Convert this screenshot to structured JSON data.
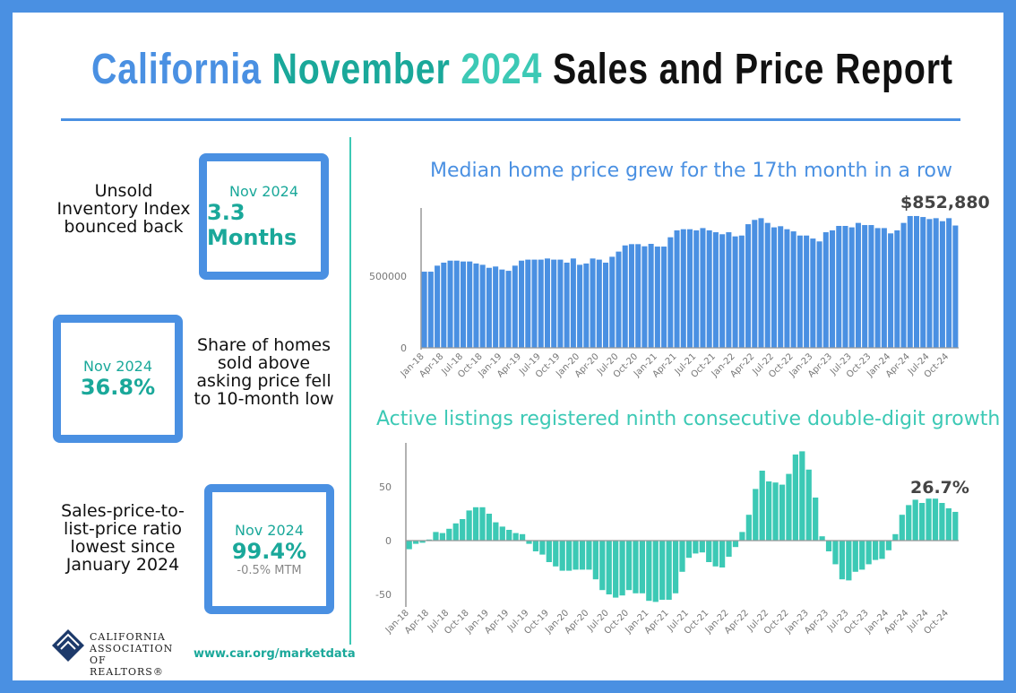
{
  "title": {
    "part1": "California",
    "part2": "November",
    "part3": "2024",
    "part4": "Sales and Price Report"
  },
  "panels": [
    {
      "label": "Unsold Inventory Index bounced back",
      "month": "Nov 2024",
      "value": "3.3 Months"
    },
    {
      "label": "Share of homes sold above asking price fell to 10-month low",
      "month": "Nov 2024",
      "value": "36.8%"
    },
    {
      "label": "Sales-price-to-list-price ratio lowest since January 2024",
      "month": "Nov 2024",
      "value": "99.4%",
      "sub": "-0.5% MTM"
    }
  ],
  "footer": {
    "logo_text": "CALIFORNIA ASSOCIATION OF REALTORS®",
    "url": "www.car.org/marketdata"
  },
  "colors": {
    "frame": "#4a90e2",
    "price_bars": "#4a90e2",
    "listing_bars": "#3cc9b5",
    "accent": "#1aa89a"
  },
  "chart_data": [
    {
      "type": "bar",
      "title": "Median home price grew for the 17th month in a row",
      "annotation": "$852,880",
      "x_start": "Jan-18",
      "x_end": "Nov-24",
      "tick_labels": [
        "Jan-18",
        "Apr-18",
        "Jul-18",
        "Oct-18",
        "Jan-19",
        "Apr-19",
        "Jul-19",
        "Oct-19",
        "Jan-20",
        "Apr-20",
        "Jul-20",
        "Oct-20",
        "Jan-21",
        "Apr-21",
        "Jul-21",
        "Oct-21",
        "Jan-22",
        "Apr-22",
        "Jul-22",
        "Oct-22",
        "Jan-23",
        "Apr-23",
        "Jul-23",
        "Oct-23",
        "Jan-24",
        "Apr-24",
        "Jul-24",
        "Oct-24"
      ],
      "yticks": [
        "0",
        "500000"
      ],
      "ylim": [
        0,
        950000
      ],
      "values": [
        531000,
        531000,
        573000,
        594000,
        608000,
        608000,
        602000,
        602000,
        588000,
        579000,
        558000,
        567000,
        546000,
        537000,
        573000,
        608000,
        615000,
        615000,
        615000,
        623000,
        615000,
        615000,
        594000,
        623000,
        579000,
        588000,
        623000,
        615000,
        594000,
        635000,
        671000,
        714000,
        723000,
        723000,
        708000,
        725000,
        706000,
        706000,
        771000,
        819000,
        827000,
        827000,
        819000,
        835000,
        819000,
        806000,
        792000,
        806000,
        777000,
        783000,
        862000,
        892000,
        904000,
        871000,
        840000,
        848000,
        827000,
        812000,
        783000,
        783000,
        762000,
        742000,
        806000,
        819000,
        850000,
        850000,
        840000,
        871000,
        856000,
        856000,
        835000,
        835000,
        798000,
        819000,
        871000,
        919000,
        919000,
        912000,
        898000,
        904000,
        883000,
        904000,
        852880
      ]
    },
    {
      "type": "bar",
      "title": "Active listings registered ninth consecutive double-digit growth",
      "annotation": "26.7%",
      "x_start": "Jan-18",
      "x_end": "Nov-24",
      "tick_labels": [
        "Jan-18",
        "Apr-18",
        "Jul-18",
        "Oct-18",
        "Jan-19",
        "Apr-19",
        "Jul-19",
        "Oct-19",
        "Jan-20",
        "Apr-20",
        "Jul-20",
        "Oct-20",
        "Jan-21",
        "Apr-21",
        "Jul-21",
        "Oct-21",
        "Jan-22",
        "Apr-22",
        "Jul-22",
        "Oct-22",
        "Jan-23",
        "Apr-23",
        "Jul-23",
        "Oct-23",
        "Jan-24",
        "Apr-24",
        "Jul-24",
        "Oct-24"
      ],
      "yticks": [
        "-50",
        "0",
        "50"
      ],
      "ylim": [
        -62,
        90
      ],
      "values": [
        -8,
        -3,
        -2,
        1,
        8,
        7,
        11,
        16,
        20,
        28,
        31,
        31,
        25,
        17,
        13,
        10,
        7,
        6,
        -3,
        -10,
        -13,
        -20,
        -24,
        -28,
        -28,
        -27,
        -27,
        -27,
        -36,
        -46,
        -50,
        -53,
        -51,
        -46,
        -49,
        -49,
        -56,
        -57,
        -55,
        -55,
        -49,
        -29,
        -16,
        -12,
        -11,
        -20,
        -24,
        -25,
        -15,
        -6,
        8,
        24,
        48,
        65,
        55,
        54,
        52,
        62,
        80,
        83,
        66,
        40,
        4,
        -10,
        -22,
        -36,
        -37,
        -29,
        -27,
        -22,
        -18,
        -17,
        -9,
        6,
        24,
        33,
        38,
        35,
        39,
        39,
        35,
        30,
        26.7
      ]
    }
  ]
}
